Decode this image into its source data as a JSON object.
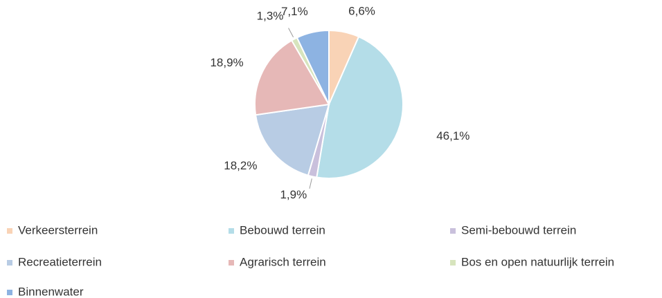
{
  "chart_data": {
    "type": "pie",
    "categories": [
      "Verkeersterrein",
      "Bebouwd terrein",
      "Semi-bebouwd terrein",
      "Recreatieterrein",
      "Agrarisch terrein",
      "Bos en open natuurlijk terrein",
      "Binnenwater"
    ],
    "values": [
      6.6,
      46.1,
      1.9,
      18.2,
      18.9,
      1.3,
      7.1
    ],
    "value_labels": [
      "6,6%",
      "46,1%",
      "1,9%",
      "18,2%",
      "18,9%",
      "1,3%",
      "7,1%"
    ],
    "colors": [
      "#f9d3b6",
      "#b4dde8",
      "#c9c0dc",
      "#b8cce4",
      "#e6b8b7",
      "#d7e4bd",
      "#8db3e2"
    ]
  }
}
